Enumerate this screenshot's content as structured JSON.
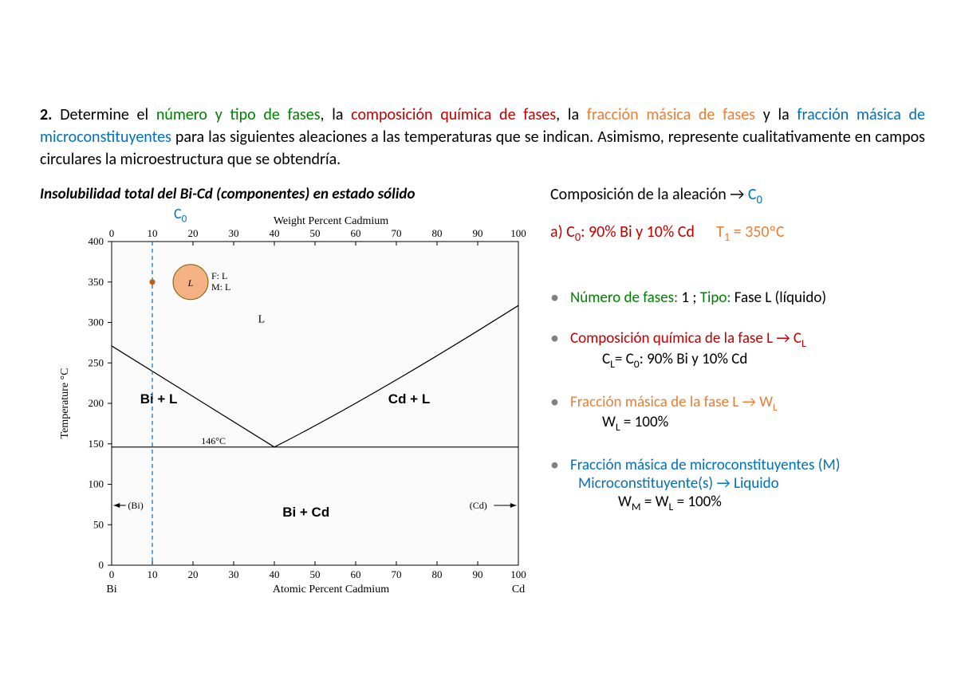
{
  "problem": {
    "number": "2.",
    "seg1": " Determine el ",
    "seg2_green": "número y tipo de fases",
    "seg3": ", la ",
    "seg4_red": "composición química de fases",
    "seg5": ", la ",
    "seg6_orange": "fracción másica de fases",
    "seg7": " y la ",
    "seg8_blue": "fracción másica de microconstituyentes",
    "seg9": " para las siguientes aleaciones a las temperaturas que se indican. Asimismo, represente cualitativamente en campos circulares la microestructura que se obtendría."
  },
  "chart": {
    "title": "Insolubilidad total del Bi-Cd (componentes) en estado sólido",
    "c0_label": "C",
    "c0_sub": "0",
    "top_axis_label": "Weight Percent Cadmium",
    "bottom_axis_label": "Atomic Percent Cadmium",
    "y_axis_label": "Temperature °C",
    "y_ticks": [
      0,
      50,
      100,
      150,
      200,
      250,
      300,
      350,
      400
    ],
    "x_ticks_top": [
      0,
      10,
      20,
      30,
      40,
      50,
      60,
      70,
      80,
      90,
      100
    ],
    "x_ticks_bot": [
      0,
      10,
      20,
      30,
      40,
      50,
      60,
      70,
      80,
      90,
      100
    ],
    "left_end": "Bi",
    "right_end": "Cd",
    "regions": {
      "L": "L",
      "BiL": "Bi + L",
      "CdL": "Cd + L",
      "BiCd": "Bi + Cd",
      "Bi": "(Bi)",
      "Cd": "(Cd)"
    },
    "eutectic_temp_label": "146°C",
    "eutectic_temp": 146,
    "eutectic_wt": 40,
    "left_liquidus_start_T": 271,
    "right_liquidus_end_T": 321,
    "circle": {
      "x_wt": 10,
      "T": 350,
      "r": 22,
      "fill": "#f4b183",
      "label_L": "L",
      "label_F": "F: L",
      "label_M": "M: L"
    },
    "c0_line_wt": 10,
    "colors": {
      "axis": "#000000",
      "grid": "#000000",
      "c0_line": "#0070c0",
      "circle_fill": "#f4b183",
      "bg": "#fafafa"
    }
  },
  "answers": {
    "header_pre": "Composición de la aleación → ",
    "header_C": "C",
    "header_sub": "0",
    "a_label": "a)  ",
    "a_C": "C",
    "a_sub": "0",
    "a_comp": ": 90% Bi y 10% Cd",
    "a_T": "T",
    "a_Tsub": "1",
    "a_Tval": " = 350ºC",
    "b1_green": "Número de fases:",
    "b1_val": " 1 ; ",
    "b1_green2": "Tipo:",
    "b1_val2": " Fase L (líquido)",
    "b2_red": "Composición química de la fase L → C",
    "b2_sub": "L",
    "b2_line2a": "C",
    "b2_line2a_sub": "L",
    "b2_line2b": "= C",
    "b2_line2b_sub": "0",
    "b2_line2c": ": 90% Bi y 10% Cd",
    "b3_orange": "Fracción másica de la fase L → W",
    "b3_sub": "L",
    "b3_line2a": "W",
    "b3_line2a_sub": "L",
    "b3_line2b": " = 100%",
    "b4_blue": "Fracción másica de microconstituyentes (M)",
    "b4_line2": "Microconstituyente(s) → Liquido",
    "b4_line3a": "W",
    "b4_line3a_sub": "M",
    "b4_line3b": " = W",
    "b4_line3b_sub": "L",
    "b4_line3c": " = 100%"
  }
}
